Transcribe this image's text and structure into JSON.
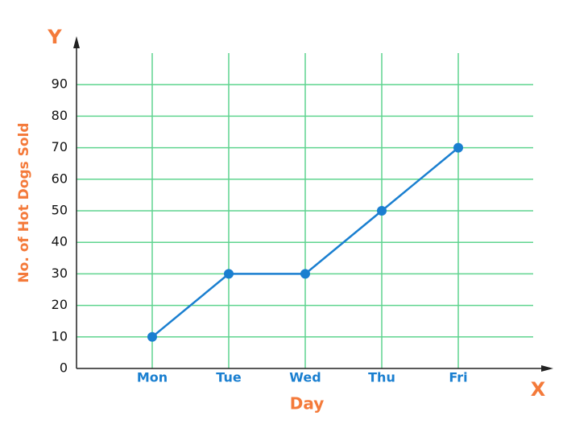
{
  "chart_data": {
    "type": "line",
    "x_label": "Day",
    "y_label": "No. of Hot Dogs Sold",
    "x_axis_letter": "X",
    "y_axis_letter": "Y",
    "categories": [
      "Mon",
      "Tue",
      "Wed",
      "Thu",
      "Fri"
    ],
    "series": [
      {
        "name": "Hot Dogs Sold",
        "color": "#1a7fd0",
        "values": [
          10,
          30,
          30,
          50,
          70
        ]
      }
    ],
    "ylim": [
      0,
      100
    ],
    "yticks": [
      0,
      10,
      20,
      30,
      40,
      50,
      60,
      70,
      80,
      90
    ],
    "grid": true,
    "grid_color": "#5fd48f",
    "accent_color": "#f47a3a"
  }
}
